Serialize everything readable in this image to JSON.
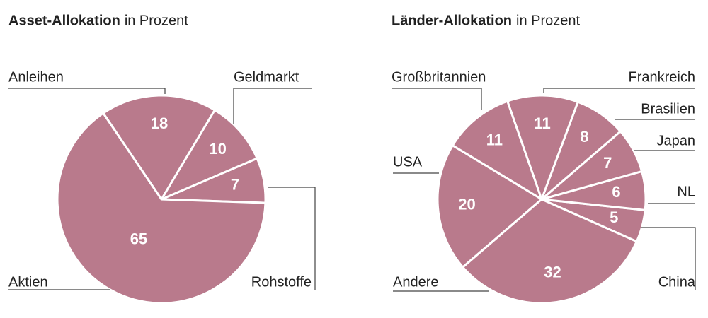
{
  "chart_data": [
    {
      "type": "pie",
      "title": "Asset-Allokation",
      "subtitle": "in Prozent",
      "categories": [
        "Rohstoffe",
        "Geldmarkt",
        "Anleihen",
        "Aktien"
      ],
      "values": [
        7,
        10,
        18,
        65
      ],
      "color": "#b97a8c"
    },
    {
      "type": "pie",
      "title": "Länder-Allokation",
      "subtitle": "in Prozent",
      "categories": [
        "China",
        "NL",
        "Japan",
        "Brasilien",
        "Frankreich",
        "Großbritannien",
        "USA",
        "Andere"
      ],
      "values": [
        5,
        6,
        7,
        8,
        11,
        11,
        20,
        32
      ],
      "color": "#b97a8c"
    }
  ]
}
